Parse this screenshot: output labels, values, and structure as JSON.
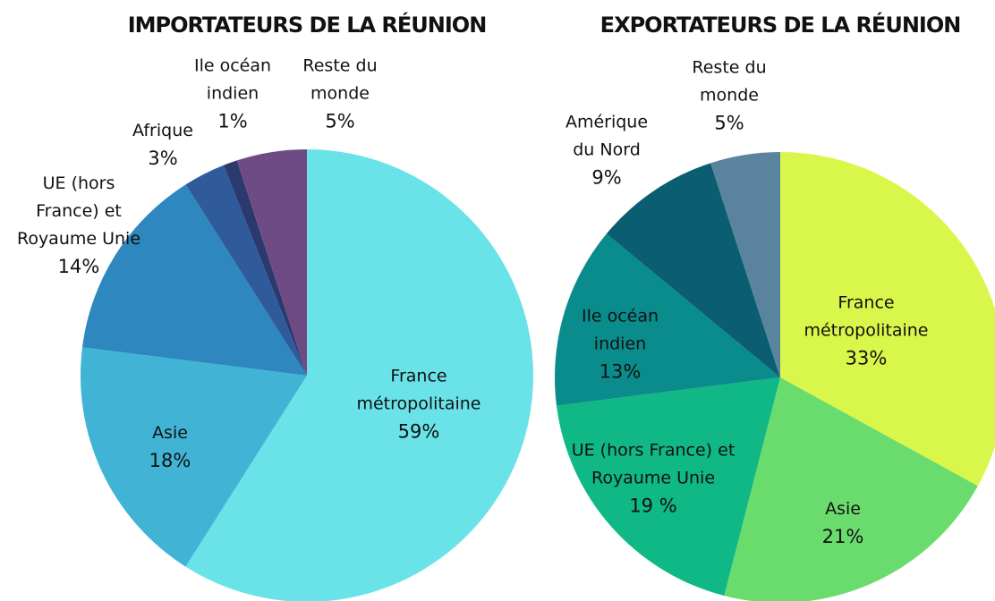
{
  "chart_data": [
    {
      "type": "pie",
      "title": "IMPORTATEURS DE LA RÉUNION",
      "categories": [
        "France métropolitaine",
        "Asie",
        "UE (hors France) et Royaume Unie",
        "Afrique",
        "Ile océan indien",
        "Reste du monde"
      ],
      "values": [
        59,
        18,
        14,
        3,
        1,
        5
      ],
      "value_labels": [
        "59%",
        "18%",
        "14%",
        "3%",
        "1%",
        "5%"
      ],
      "colors": [
        "#6ae3e8",
        "#41b4d6",
        "#2e88bf",
        "#2f5b9a",
        "#2b3a6e",
        "#6e4c83"
      ]
    },
    {
      "type": "pie",
      "title": "EXPORTATEURS DE LA RÉUNION",
      "categories": [
        "France métropolitaine",
        "Asie",
        "UE (hors France) et Royaume Unie",
        "Ile océan indien",
        "Amérique du Nord",
        "Reste du monde"
      ],
      "values": [
        33,
        21,
        19,
        13,
        9,
        5
      ],
      "value_labels": [
        "33%",
        "21%",
        "19 %",
        "13%",
        "9%",
        "5%"
      ],
      "colors": [
        "#d9f74a",
        "#6adc6e",
        "#0fb884",
        "#0a8c8c",
        "#0b5e72",
        "#5a849e"
      ]
    }
  ]
}
